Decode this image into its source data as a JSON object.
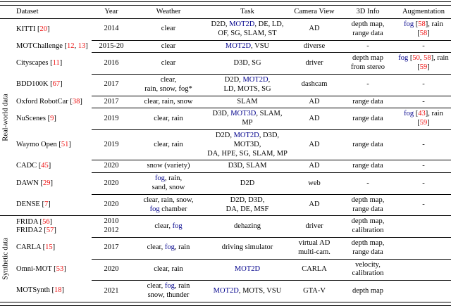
{
  "colors": {
    "cite": "#ee1111",
    "kw": "#00008B"
  },
  "table": {
    "columns": [
      "Dataset",
      "Year",
      "Weather",
      "Task",
      "Camera View",
      "3D Info",
      "Augmentation"
    ],
    "fields": [
      "dataset",
      "year",
      "weather",
      "task",
      "camera",
      "info",
      "aug"
    ],
    "sections": [
      {
        "id": "real-world",
        "label": "Real-world data",
        "rows": [
          {
            "dataset": [
              [
                "KITTI [",
                {
                  "t": "20",
                  "c": "cite"
                },
                "]"
              ]
            ],
            "year": "2014",
            "weather": "clear",
            "task": [
              [
                "D2D, ",
                {
                  "t": "MOT2D",
                  "c": "kw"
                },
                ", DE, LD,"
              ],
              [
                "OF, SG, SLAM, ST"
              ]
            ],
            "camera": "AD",
            "info": [
              [
                "depth map,"
              ],
              [
                "range data"
              ]
            ],
            "aug": [
              [
                {
                  "t": "fog",
                  "c": "kw"
                },
                " [",
                {
                  "t": "58",
                  "c": "cite"
                },
                "], rain [",
                {
                  "t": "58",
                  "c": "cite"
                },
                "]"
              ]
            ]
          },
          {
            "dataset": [
              [
                "MOTChallenge [",
                {
                  "t": "12",
                  "c": "cite"
                },
                ", ",
                {
                  "t": "13",
                  "c": "cite"
                },
                "]"
              ]
            ],
            "year": "2015-20",
            "weather": "clear",
            "task": [
              [
                {
                  "t": "MOT2D",
                  "c": "kw"
                },
                ", VSU"
              ]
            ],
            "camera": "diverse",
            "info": "-",
            "aug": "-"
          },
          {
            "dataset": [
              [
                "Cityscapes [",
                {
                  "t": "11",
                  "c": "cite"
                },
                "]"
              ]
            ],
            "year": "2016",
            "weather": "clear",
            "task": "D3D, SG",
            "camera": "driver",
            "info": [
              [
                "depth map"
              ],
              [
                "from stereo"
              ]
            ],
            "aug": [
              [
                {
                  "t": "fog",
                  "c": "kw"
                },
                " [",
                {
                  "t": "50",
                  "c": "cite"
                },
                ", ",
                {
                  "t": "58",
                  "c": "cite"
                },
                "], rain [",
                {
                  "t": "59",
                  "c": "cite"
                },
                "]"
              ]
            ]
          },
          {
            "dataset": [
              [
                "BDD100K [",
                {
                  "t": "67",
                  "c": "cite"
                },
                "]"
              ]
            ],
            "year": "2017",
            "weather": [
              [
                "clear,"
              ],
              [
                "rain, snow, fog*"
              ]
            ],
            "task": [
              [
                "D2D, ",
                {
                  "t": "MOT2D",
                  "c": "kw"
                },
                ","
              ],
              [
                "LD, MOTS, SG"
              ]
            ],
            "camera": "dashcam",
            "info": "-",
            "aug": "-"
          },
          {
            "dataset": [
              [
                "Oxford RobotCar [",
                {
                  "t": "38",
                  "c": "cite"
                },
                "]"
              ]
            ],
            "year": "2017",
            "weather": "clear, rain, snow",
            "task": "SLAM",
            "camera": "AD",
            "info": "range data",
            "aug": "-"
          },
          {
            "dataset": [
              [
                "NuScenes [",
                {
                  "t": "9",
                  "c": "cite"
                },
                "]"
              ]
            ],
            "year": "2019",
            "weather": "clear, rain",
            "task": [
              [
                "D3D, ",
                {
                  "t": "MOT3D",
                  "c": "kw"
                },
                ", SLAM, MP"
              ]
            ],
            "camera": "AD",
            "info": "range data",
            "aug": [
              [
                {
                  "t": "fog",
                  "c": "kw"
                },
                " [",
                {
                  "t": "43",
                  "c": "cite"
                },
                "], rain [",
                {
                  "t": "59",
                  "c": "cite"
                },
                "]"
              ]
            ]
          },
          {
            "dataset": [
              [
                "Waymo Open [",
                {
                  "t": "51",
                  "c": "cite"
                },
                "]"
              ]
            ],
            "year": "2019",
            "weather": "clear, rain",
            "task": [
              [
                "D2D, ",
                {
                  "t": "MOT2D",
                  "c": "kw"
                },
                ", D3D, MOT3D,"
              ],
              [
                "DA, HPE, SG, SLAM, MP"
              ]
            ],
            "camera": "AD",
            "info": "range data",
            "aug": "-"
          },
          {
            "dataset": [
              [
                "CADC [",
                {
                  "t": "45",
                  "c": "cite"
                },
                "]"
              ]
            ],
            "year": "2020",
            "weather": "snow (variety)",
            "task": "D3D, SLAM",
            "camera": "AD",
            "info": "range data",
            "aug": "-"
          },
          {
            "dataset": [
              [
                "DAWN [",
                {
                  "t": "29",
                  "c": "cite"
                },
                "]"
              ]
            ],
            "year": "2020",
            "weather": [
              [
                {
                  "t": "fog",
                  "c": "kw"
                },
                ", rain,"
              ],
              [
                "sand, snow"
              ]
            ],
            "task": "D2D",
            "camera": "web",
            "info": "-",
            "aug": "-"
          },
          {
            "dataset": [
              [
                "DENSE [",
                {
                  "t": "7",
                  "c": "cite"
                },
                "]"
              ]
            ],
            "year": "2020",
            "weather": [
              [
                "clear, rain, snow,"
              ],
              [
                {
                  "t": "fog",
                  "c": "kw"
                },
                " chamber"
              ]
            ],
            "task": [
              [
                "D2D, D3D,"
              ],
              [
                "DA, DE, MSF"
              ]
            ],
            "camera": "AD",
            "info": [
              [
                "depth map,"
              ],
              [
                "range data"
              ]
            ],
            "aug": "-"
          }
        ]
      },
      {
        "id": "synthetic",
        "label": "Synthetic data",
        "rows": [
          {
            "dataset": [
              [
                "FRIDA [",
                {
                  "t": "56",
                  "c": "cite"
                },
                "]"
              ],
              [
                "FRIDA2 [",
                {
                  "t": "57",
                  "c": "cite"
                },
                "]"
              ]
            ],
            "year": [
              [
                "2010"
              ],
              [
                "2012"
              ]
            ],
            "weather": [
              [
                "clear, ",
                {
                  "t": "fog",
                  "c": "kw"
                }
              ]
            ],
            "task": "dehazing",
            "camera": "driver",
            "info": [
              [
                "depth map,"
              ],
              [
                "calibration"
              ]
            ],
            "aug": ""
          },
          {
            "dataset": [
              [
                "CARLA [",
                {
                  "t": "15",
                  "c": "cite"
                },
                "]"
              ]
            ],
            "year": "2017",
            "weather": [
              [
                "clear, ",
                {
                  "t": "fog",
                  "c": "kw"
                },
                ", rain"
              ]
            ],
            "task": "driving simulator",
            "camera": [
              [
                "virtual AD"
              ],
              [
                "multi-cam."
              ]
            ],
            "info": [
              [
                "depth map,"
              ],
              [
                "range data"
              ]
            ],
            "aug": ""
          },
          {
            "dataset": [
              [
                "Omni-MOT [",
                {
                  "t": "53",
                  "c": "cite"
                },
                "]"
              ]
            ],
            "year": "2020",
            "weather": "clear, rain",
            "task": [
              [
                {
                  "t": "MOT2D",
                  "c": "kw"
                }
              ]
            ],
            "camera": "CARLA",
            "info": [
              [
                "velocity,"
              ],
              [
                "calibration"
              ]
            ],
            "aug": ""
          },
          {
            "dataset": [
              [
                "MOTSynth [",
                {
                  "t": "18",
                  "c": "cite"
                },
                "]"
              ]
            ],
            "year": "2021",
            "weather": [
              [
                "clear, ",
                {
                  "t": "fog",
                  "c": "kw"
                },
                ", rain"
              ],
              [
                "snow, thunder"
              ]
            ],
            "task": [
              [
                {
                  "t": "MOT2D",
                  "c": "kw"
                },
                ", MOTS, VSU"
              ]
            ],
            "camera": "GTA-V",
            "info": "depth map",
            "aug": ""
          }
        ]
      }
    ]
  }
}
